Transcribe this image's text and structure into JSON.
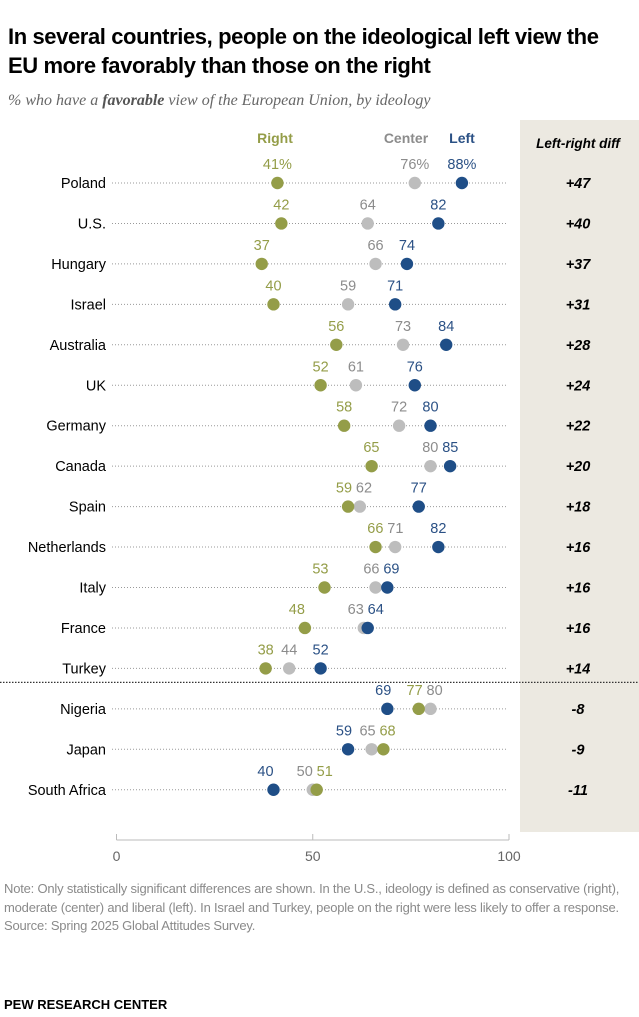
{
  "title": "In several countries, people on the ideological left view the EU more favorably than those on the right",
  "subtitle": {
    "before": "% who have a ",
    "emphasis": "favorable",
    "after": " view of the European Union, by ideology"
  },
  "colors": {
    "right": "#949d48",
    "center": "#bdbdbd",
    "left": "#1f4e87",
    "right_label": "#949d48",
    "center_label": "#8c8c8c",
    "left_label": "#2b5185",
    "diff_bg": "#ece9e1"
  },
  "chart_data": {
    "type": "dot",
    "title": "In several countries, people on the ideological left view the EU more favorably than those on the right",
    "xlim": [
      0,
      100
    ],
    "xticks": [
      0,
      50,
      100
    ],
    "series_names": [
      "Right",
      "Center",
      "Left"
    ],
    "diff_header": "Left-right diff",
    "first_row_suffix": "%",
    "rows": [
      {
        "country": "Poland",
        "right": 41,
        "center": 76,
        "left": 88,
        "diff": "+47"
      },
      {
        "country": "U.S.",
        "right": 42,
        "center": 64,
        "left": 82,
        "diff": "+40"
      },
      {
        "country": "Hungary",
        "right": 37,
        "center": 66,
        "left": 74,
        "diff": "+37"
      },
      {
        "country": "Israel",
        "right": 40,
        "center": 59,
        "left": 71,
        "diff": "+31"
      },
      {
        "country": "Australia",
        "right": 56,
        "center": 73,
        "left": 84,
        "diff": "+28"
      },
      {
        "country": "UK",
        "right": 52,
        "center": 61,
        "left": 76,
        "diff": "+24"
      },
      {
        "country": "Germany",
        "right": 58,
        "center": 72,
        "left": 80,
        "diff": "+22"
      },
      {
        "country": "Canada",
        "right": 65,
        "center": 80,
        "left": 85,
        "diff": "+20"
      },
      {
        "country": "Spain",
        "right": 59,
        "center": 62,
        "left": 77,
        "diff": "+18"
      },
      {
        "country": "Netherlands",
        "right": 66,
        "center": 71,
        "left": 82,
        "diff": "+16"
      },
      {
        "country": "Italy",
        "right": 53,
        "center": 66,
        "left": 69,
        "diff": "+16"
      },
      {
        "country": "France",
        "right": 48,
        "center": 63,
        "left": 64,
        "diff": "+16"
      },
      {
        "country": "Turkey",
        "right": 38,
        "center": 44,
        "left": 52,
        "diff": "+14"
      },
      {
        "country": "Nigeria",
        "right": 77,
        "center": 80,
        "left": 69,
        "diff": "-8"
      },
      {
        "country": "Japan",
        "right": 68,
        "center": 65,
        "left": 59,
        "diff": "-9"
      },
      {
        "country": "South Africa",
        "right": 51,
        "center": 50,
        "left": 40,
        "diff": "-11"
      }
    ],
    "separator_after": "Turkey"
  },
  "note": "Note: Only statistically significant differences are shown. In the U.S., ideology is defined as conservative (right), moderate (center) and liberal (left). In Israel and Turkey, people on the right were less likely to offer a response.",
  "source": "Source: Spring 2025 Global Attitudes Survey.",
  "brand": "PEW RESEARCH CENTER"
}
